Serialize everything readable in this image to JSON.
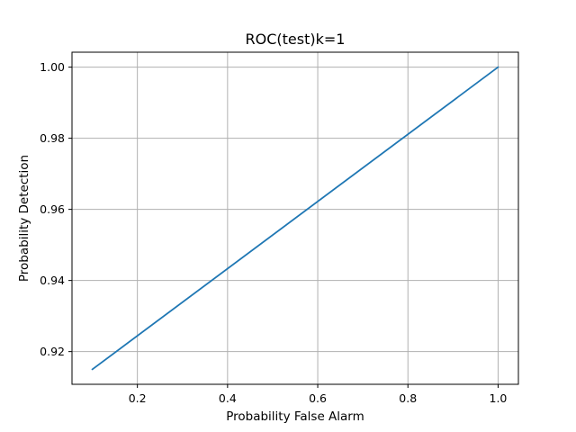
{
  "chart_data": {
    "type": "line",
    "title": "ROC(test)k=1",
    "xlabel": "Probability False Alarm",
    "ylabel": "Probability Detection",
    "xlim": [
      0.055,
      1.045
    ],
    "ylim": [
      0.9108,
      1.0042
    ],
    "xticks": [
      0.2,
      0.4,
      0.6,
      0.8,
      1.0
    ],
    "xtick_labels": [
      "0.2",
      "0.4",
      "0.6",
      "0.8",
      "1.0"
    ],
    "yticks": [
      0.92,
      0.94,
      0.96,
      0.98,
      1.0
    ],
    "ytick_labels": [
      "0.92",
      "0.94",
      "0.96",
      "0.98",
      "1.00"
    ],
    "grid": true,
    "series": [
      {
        "color": "#1f77b4",
        "x": [
          0.1,
          1.0
        ],
        "y": [
          0.915,
          1.0
        ]
      }
    ]
  }
}
